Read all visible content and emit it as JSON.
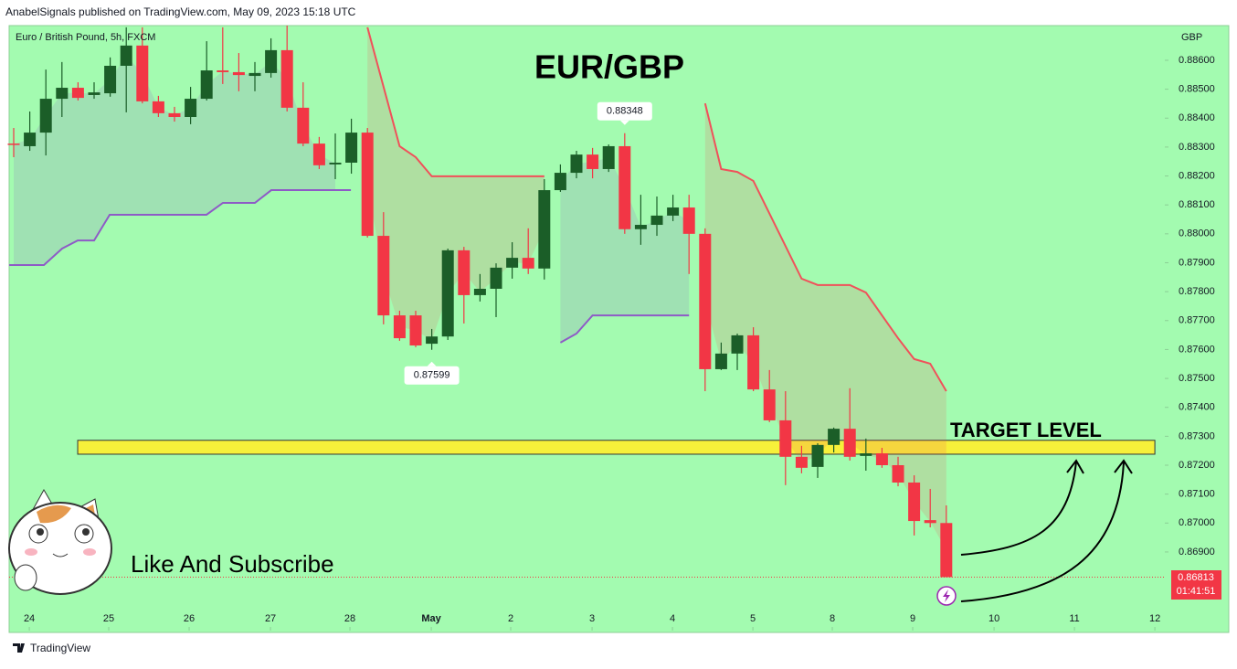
{
  "header": {
    "publisher": "AnabelSignals published on TradingView.com, May 09, 2023 15:18 UTC",
    "footer": "TradingView"
  },
  "chart_data": {
    "type": "candlestick",
    "title": "EUR/GBP",
    "symbol": "Euro / British Pound, 5h, FXCM",
    "currency": "GBP",
    "annotations": {
      "target": "TARGET LEVEL",
      "cta": "Like And Subscribe"
    },
    "countdown": "01:41:51",
    "open": [
      0.88312,
      0.88303,
      0.8835,
      0.88467,
      0.88505,
      0.8848,
      0.88486,
      0.88581,
      0.88651,
      0.88458,
      0.88417,
      0.88404,
      0.88467,
      0.88565,
      0.88559,
      0.88546,
      0.88556,
      0.88635,
      0.88436,
      0.88312,
      0.8824,
      0.88246,
      0.8835,
      0.87993,
      0.87718,
      0.87718,
      0.8762,
      0.87645,
      0.87943,
      0.87788,
      0.8781,
      0.87883,
      0.87917,
      0.8788,
      0.88151,
      0.88211,
      0.88274,
      0.88224,
      0.88303,
      0.88016,
      0.88031,
      0.88063,
      0.88091,
      0.88,
      0.87532,
      0.87586,
      0.87649,
      0.87462,
      0.87355,
      0.87229,
      0.87194,
      0.8727,
      0.87326,
      0.87232,
      0.87241,
      0.872,
      0.8714,
      0.8701,
      0.87
    ],
    "high": [
      0.88366,
      0.88423,
      0.88568,
      0.88594,
      0.88524,
      0.88524,
      0.8861,
      0.88714,
      0.88714,
      0.88477,
      0.88439,
      0.88508,
      0.88666,
      0.88714,
      0.88625,
      0.88594,
      0.88676,
      0.8872,
      0.88524,
      0.88335,
      0.88347,
      0.88398,
      0.88366,
      0.88075,
      0.87734,
      0.87734,
      0.87671,
      0.87949,
      0.87955,
      0.87861,
      0.87898,
      0.87971,
      0.88019,
      0.88189,
      0.8824,
      0.88287,
      0.88297,
      0.88309,
      0.88348,
      0.88135,
      0.88129,
      0.88135,
      0.88135,
      0.88019,
      0.87624,
      0.87655,
      0.87677,
      0.87529,
      0.87456,
      0.87267,
      0.87276,
      0.8733,
      0.87466,
      0.87292,
      0.8726,
      0.87229,
      0.87165,
      0.87118,
      0.87061
    ],
    "low": [
      0.88265,
      0.88287,
      0.88271,
      0.88404,
      0.88461,
      0.88467,
      0.88474,
      0.8842,
      0.88451,
      0.88404,
      0.88388,
      0.88379,
      0.88461,
      0.88518,
      0.88493,
      0.88493,
      0.8854,
      0.88423,
      0.88303,
      0.88224,
      0.88189,
      0.88208,
      0.87987,
      0.87687,
      0.8763,
      0.87608,
      0.87599,
      0.87633,
      0.8769,
      0.87766,
      0.87712,
      0.87845,
      0.87861,
      0.87842,
      0.88145,
      0.88192,
      0.88192,
      0.88214,
      0.88,
      0.87962,
      0.87993,
      0.88044,
      0.87861,
      0.87456,
      0.87529,
      0.87529,
      0.87456,
      0.87349,
      0.87131,
      0.87172,
      0.87156,
      0.87244,
      0.87216,
      0.87181,
      0.87191,
      0.87127,
      0.86957,
      0.86985,
      0.86813
    ],
    "close": [
      0.88309,
      0.8835,
      0.88467,
      0.88505,
      0.8847,
      0.88489,
      0.88581,
      0.88651,
      0.88458,
      0.88417,
      0.88404,
      0.88467,
      0.88565,
      0.88559,
      0.88549,
      0.88556,
      0.88635,
      0.88436,
      0.88312,
      0.88237,
      0.88246,
      0.8835,
      0.87993,
      0.87718,
      0.87639,
      0.87614,
      0.87645,
      0.87943,
      0.87788,
      0.8781,
      0.87883,
      0.87917,
      0.8788,
      0.88151,
      0.88211,
      0.88274,
      0.88224,
      0.88303,
      0.88016,
      0.88031,
      0.88063,
      0.88091,
      0.88,
      0.87532,
      0.87586,
      0.87649,
      0.87462,
      0.87355,
      0.87229,
      0.87191,
      0.8727,
      0.87326,
      0.87229,
      0.87241,
      0.872,
      0.8714,
      0.87007,
      0.87,
      0.86813
    ],
    "up_color": "#1b5e28",
    "down_color": "#f23645",
    "high_marker": 38,
    "low_marker": 26,
    "overlays": [
      {
        "color": "#8e5bc6",
        "x": [
          -0.28,
          1.88,
          3.01,
          3.98,
          5.0,
          5.97,
          11.99,
          13.01,
          15.0,
          16.02,
          20.97
        ],
        "values": [
          0.87892,
          0.87892,
          0.87949,
          0.87977,
          0.87977,
          0.88066,
          0.88066,
          0.88107,
          0.88107,
          0.88151,
          0.88151
        ]
      },
      {
        "color": "#8e5bc6",
        "x": [
          34,
          35,
          36,
          42
        ],
        "values": [
          0.87624,
          0.87655,
          0.87718,
          0.87718
        ]
      },
      {
        "color": "#f0515a",
        "x": [
          22,
          24,
          25,
          26,
          33
        ],
        "values": [
          0.88714,
          0.88303,
          0.88265,
          0.88199,
          0.88199
        ]
      },
      {
        "color": "#f0515a",
        "x": [
          43,
          44,
          45,
          46,
          49,
          50,
          52,
          53,
          55,
          56,
          57,
          58
        ],
        "values": [
          0.88451,
          0.88224,
          0.88214,
          0.88183,
          0.87845,
          0.87823,
          0.87823,
          0.87797,
          0.87639,
          0.87567,
          0.87551,
          0.87456
        ]
      }
    ],
    "target_zone": {
      "range": [
        0.87238,
        0.87286
      ],
      "x": [
        3.98,
        70.97
      ],
      "color": "#f7f03a"
    },
    "xlim": [
      -0.284,
      71.59
    ],
    "ylim": [
      0.86628,
      0.8872
    ],
    "xticks": [
      {
        "value": 0.97,
        "label": "24"
      },
      {
        "value": 5.91,
        "label": "25"
      },
      {
        "value": 10.91,
        "label": "26"
      },
      {
        "value": 15.97,
        "label": "27"
      },
      {
        "value": 20.91,
        "label": "28"
      },
      {
        "value": 25.97,
        "label": "May"
      },
      {
        "value": 30.91,
        "label": "2"
      },
      {
        "value": 35.97,
        "label": "3"
      },
      {
        "value": 40.97,
        "label": "4"
      },
      {
        "value": 45.97,
        "label": "5"
      },
      {
        "value": 50.91,
        "label": "8"
      },
      {
        "value": 55.91,
        "label": "9"
      },
      {
        "value": 60.97,
        "label": "10"
      },
      {
        "value": 65.97,
        "label": "11"
      },
      {
        "value": 70.97,
        "label": "12"
      }
    ],
    "yticks": [
      {
        "value": 0.886,
        "label": "0.88600"
      },
      {
        "value": 0.885,
        "label": "0.88500"
      },
      {
        "value": 0.884,
        "label": "0.88400"
      },
      {
        "value": 0.883,
        "label": "0.88300"
      },
      {
        "value": 0.882,
        "label": "0.88200"
      },
      {
        "value": 0.881,
        "label": "0.88100"
      },
      {
        "value": 0.88,
        "label": "0.88000"
      },
      {
        "value": 0.879,
        "label": "0.87900"
      },
      {
        "value": 0.878,
        "label": "0.87800"
      },
      {
        "value": 0.877,
        "label": "0.87700"
      },
      {
        "value": 0.876,
        "label": "0.87600"
      },
      {
        "value": 0.875,
        "label": "0.87500"
      },
      {
        "value": 0.874,
        "label": "0.87400"
      },
      {
        "value": 0.873,
        "label": "0.87300"
      },
      {
        "value": 0.872,
        "label": "0.87200"
      },
      {
        "value": 0.871,
        "label": "0.87100"
      },
      {
        "value": 0.87,
        "label": "0.87000"
      },
      {
        "value": 0.869,
        "label": "0.86900"
      }
    ]
  }
}
